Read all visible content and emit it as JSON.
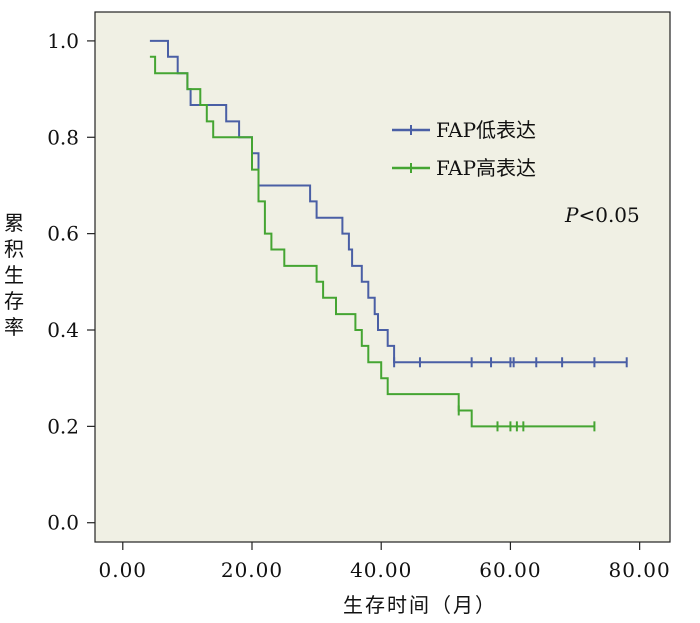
{
  "chart_data": {
    "type": "line",
    "title": "",
    "xlabel": "生存时间（月）",
    "ylabel": "累积生存率",
    "xlim": [
      -4.3,
      84.7
    ],
    "ylim": [
      -0.04,
      1.06
    ],
    "x_ticks": [
      "0.00",
      "20.00",
      "40.00",
      "60.00",
      "80.00"
    ],
    "x_tick_values": [
      0,
      20,
      40,
      60,
      80
    ],
    "y_ticks": [
      "0.0",
      "0.2",
      "0.4",
      "0.6",
      "0.8",
      "1.0"
    ],
    "y_tick_values": [
      0,
      0.2,
      0.4,
      0.6,
      0.8,
      1.0
    ],
    "legend_position": "top-right",
    "annotation": {
      "italic": "P",
      "rest": "<0.05"
    },
    "series": [
      {
        "name": "FAP低表达",
        "color": "#4a5fa5",
        "steps": [
          [
            4.2,
            1.0
          ],
          [
            7,
            1.0
          ],
          [
            7,
            0.967
          ],
          [
            8.5,
            0.967
          ],
          [
            8.5,
            0.933
          ],
          [
            10,
            0.933
          ],
          [
            10,
            0.9
          ],
          [
            10.5,
            0.9
          ],
          [
            10.5,
            0.867
          ],
          [
            16,
            0.867
          ],
          [
            16,
            0.833
          ],
          [
            18,
            0.833
          ],
          [
            18,
            0.8
          ],
          [
            20,
            0.8
          ],
          [
            20,
            0.767
          ],
          [
            21,
            0.767
          ],
          [
            21,
            0.7
          ],
          [
            29,
            0.7
          ],
          [
            29,
            0.667
          ],
          [
            30,
            0.667
          ],
          [
            30,
            0.633
          ],
          [
            34,
            0.633
          ],
          [
            34,
            0.6
          ],
          [
            35,
            0.6
          ],
          [
            35,
            0.567
          ],
          [
            35.5,
            0.567
          ],
          [
            35.5,
            0.533
          ],
          [
            37,
            0.533
          ],
          [
            37,
            0.5
          ],
          [
            38,
            0.5
          ],
          [
            38,
            0.467
          ],
          [
            39,
            0.467
          ],
          [
            39,
            0.433
          ],
          [
            39.5,
            0.433
          ],
          [
            39.5,
            0.4
          ],
          [
            41,
            0.4
          ],
          [
            41,
            0.367
          ],
          [
            42,
            0.367
          ],
          [
            42,
            0.333
          ],
          [
            78,
            0.333
          ]
        ],
        "censored": [
          [
            42,
            0.333
          ],
          [
            46,
            0.333
          ],
          [
            54,
            0.333
          ],
          [
            57,
            0.333
          ],
          [
            60,
            0.333
          ],
          [
            60.5,
            0.333
          ],
          [
            64,
            0.333
          ],
          [
            68,
            0.333
          ],
          [
            73,
            0.333
          ],
          [
            78,
            0.333
          ]
        ]
      },
      {
        "name": "FAP高表达",
        "color": "#45a532",
        "steps": [
          [
            4.2,
            0.967
          ],
          [
            5,
            0.967
          ],
          [
            5,
            0.933
          ],
          [
            10,
            0.933
          ],
          [
            10,
            0.9
          ],
          [
            12,
            0.9
          ],
          [
            12,
            0.867
          ],
          [
            13,
            0.867
          ],
          [
            13,
            0.833
          ],
          [
            14,
            0.833
          ],
          [
            14,
            0.8
          ],
          [
            20,
            0.8
          ],
          [
            20,
            0.733
          ],
          [
            21,
            0.733
          ],
          [
            21,
            0.667
          ],
          [
            22,
            0.667
          ],
          [
            22,
            0.6
          ],
          [
            23,
            0.6
          ],
          [
            23,
            0.567
          ],
          [
            25,
            0.567
          ],
          [
            25,
            0.533
          ],
          [
            30,
            0.533
          ],
          [
            30,
            0.5
          ],
          [
            31,
            0.5
          ],
          [
            31,
            0.467
          ],
          [
            33,
            0.467
          ],
          [
            33,
            0.433
          ],
          [
            36,
            0.433
          ],
          [
            36,
            0.4
          ],
          [
            37,
            0.4
          ],
          [
            37,
            0.367
          ],
          [
            38,
            0.367
          ],
          [
            38,
            0.333
          ],
          [
            40,
            0.333
          ],
          [
            40,
            0.3
          ],
          [
            41,
            0.3
          ],
          [
            41,
            0.267
          ],
          [
            52,
            0.267
          ],
          [
            52,
            0.233
          ],
          [
            54,
            0.233
          ],
          [
            54,
            0.2
          ],
          [
            73,
            0.2
          ]
        ],
        "censored": [
          [
            52,
            0.233
          ],
          [
            58,
            0.2
          ],
          [
            60,
            0.2
          ],
          [
            61,
            0.2
          ],
          [
            62,
            0.2
          ],
          [
            73,
            0.2
          ]
        ]
      }
    ]
  }
}
